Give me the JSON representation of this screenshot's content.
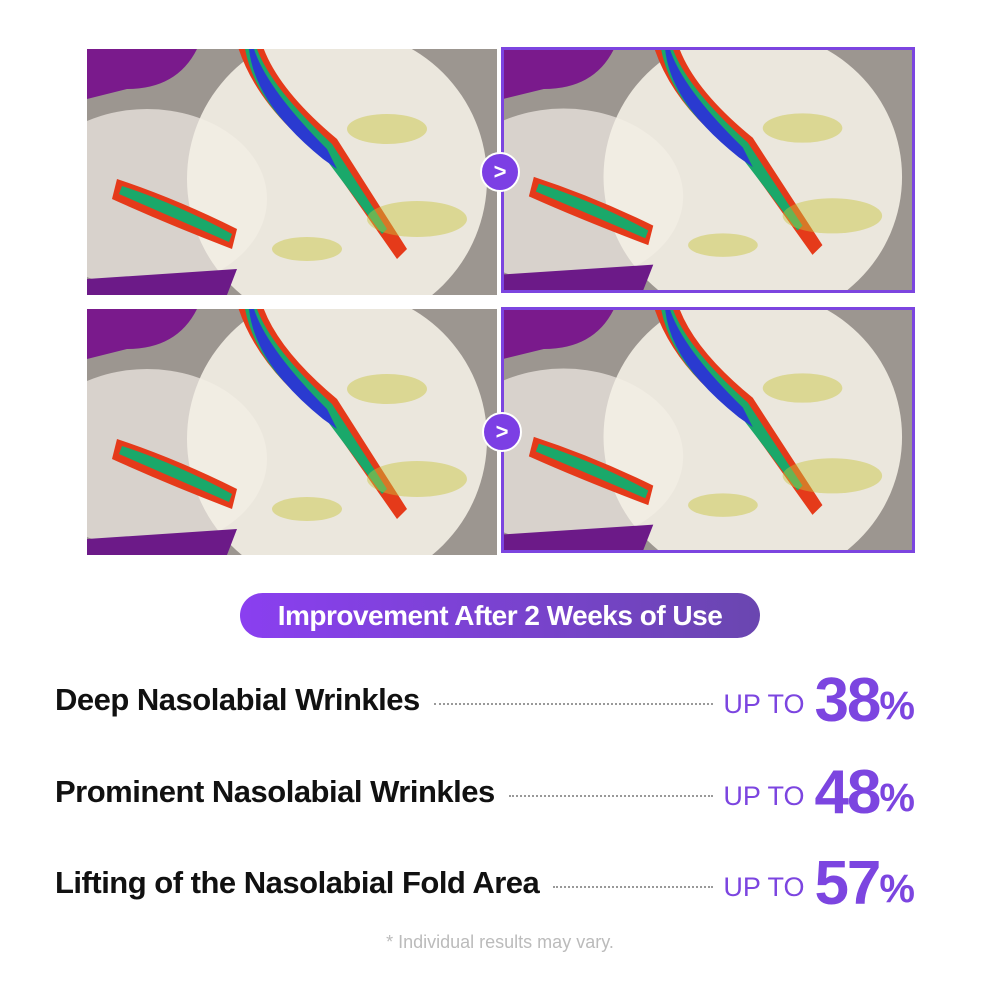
{
  "images": [
    {
      "position": "top-before",
      "depicts": "wrinkle heatmap before"
    },
    {
      "position": "top-after",
      "depicts": "wrinkle heatmap after"
    },
    {
      "position": "bottom-before",
      "depicts": "wrinkle heatmap before"
    },
    {
      "position": "bottom-after",
      "depicts": "wrinkle heatmap after"
    }
  ],
  "arrow_icon": "chevron-right-icon",
  "arrow_glyph": ">",
  "banner": "Improvement After 2 Weeks of Use",
  "results": [
    {
      "label": "Deep Nasolabial Wrinkles",
      "prefix": "UP TO",
      "value": "38",
      "unit": "%"
    },
    {
      "label": "Prominent Nasolabial Wrinkles",
      "prefix": "UP TO",
      "value": "48",
      "unit": "%"
    },
    {
      "label": "Lifting of the Nasolabial Fold Area",
      "prefix": "UP TO",
      "value": "57",
      "unit": "%"
    }
  ],
  "disclaimer": "* Individual results may vary.",
  "colors": {
    "accent": "#7c45e0"
  }
}
